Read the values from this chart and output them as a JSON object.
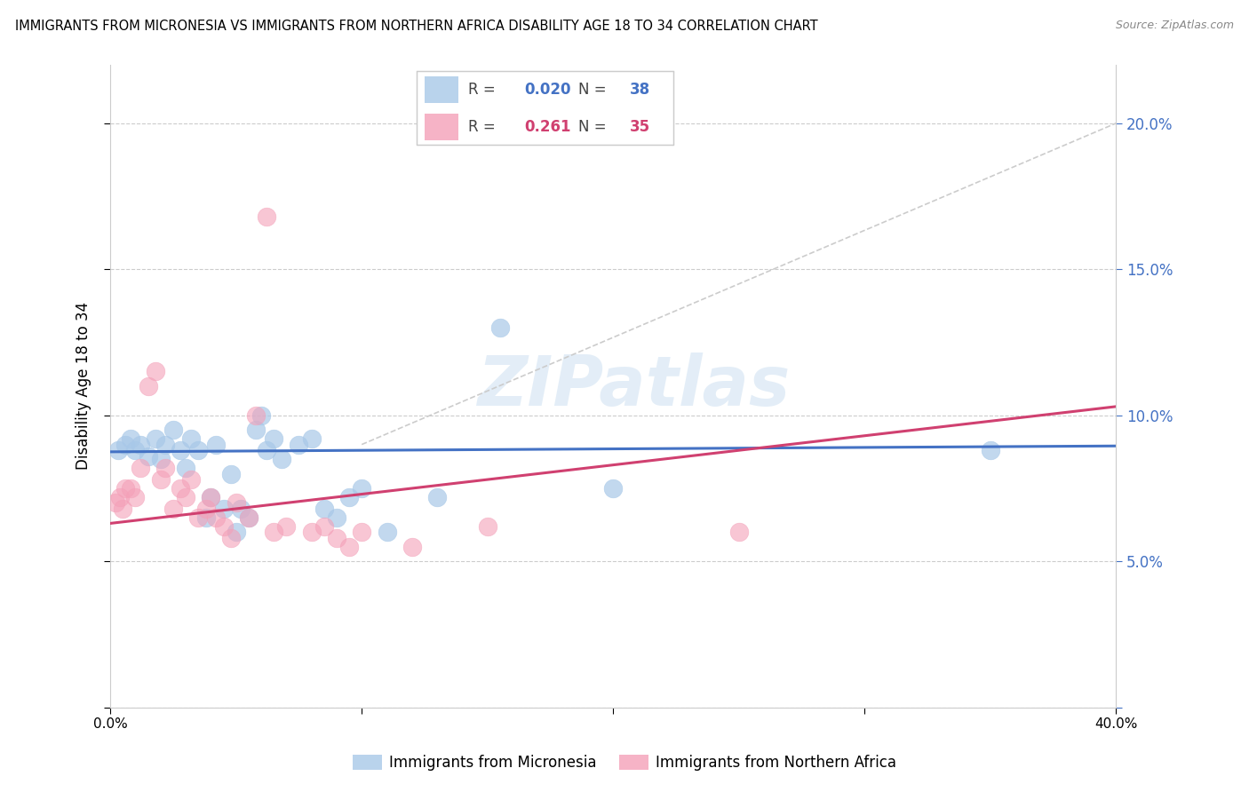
{
  "title": "IMMIGRANTS FROM MICRONESIA VS IMMIGRANTS FROM NORTHERN AFRICA DISABILITY AGE 18 TO 34 CORRELATION CHART",
  "source": "Source: ZipAtlas.com",
  "ylabel": "Disability Age 18 to 34",
  "xlim": [
    0.0,
    0.4
  ],
  "ylim": [
    0.0,
    0.22
  ],
  "yticks": [
    0.0,
    0.05,
    0.1,
    0.15,
    0.2
  ],
  "xticks": [
    0.0,
    0.1,
    0.2,
    0.3,
    0.4
  ],
  "legend_blue_r": "0.020",
  "legend_blue_n": "38",
  "legend_pink_r": "0.261",
  "legend_pink_n": "35",
  "blue_color": "#a8c8e8",
  "pink_color": "#f4a0b8",
  "blue_line_color": "#4472c4",
  "pink_line_color": "#d04070",
  "dashed_line_color": "#cccccc",
  "watermark": "ZIPatlas",
  "blue_points_x": [
    0.003,
    0.006,
    0.008,
    0.01,
    0.012,
    0.015,
    0.018,
    0.02,
    0.022,
    0.025,
    0.028,
    0.03,
    0.032,
    0.035,
    0.038,
    0.04,
    0.042,
    0.045,
    0.048,
    0.05,
    0.052,
    0.055,
    0.058,
    0.06,
    0.062,
    0.065,
    0.068,
    0.075,
    0.08,
    0.085,
    0.09,
    0.095,
    0.1,
    0.11,
    0.13,
    0.155,
    0.2,
    0.35
  ],
  "blue_points_y": [
    0.088,
    0.09,
    0.092,
    0.088,
    0.09,
    0.086,
    0.092,
    0.085,
    0.09,
    0.095,
    0.088,
    0.082,
    0.092,
    0.088,
    0.065,
    0.072,
    0.09,
    0.068,
    0.08,
    0.06,
    0.068,
    0.065,
    0.095,
    0.1,
    0.088,
    0.092,
    0.085,
    0.09,
    0.092,
    0.068,
    0.065,
    0.072,
    0.075,
    0.06,
    0.072,
    0.13,
    0.075,
    0.088
  ],
  "pink_points_x": [
    0.002,
    0.004,
    0.005,
    0.006,
    0.008,
    0.01,
    0.012,
    0.015,
    0.018,
    0.02,
    0.022,
    0.025,
    0.028,
    0.03,
    0.032,
    0.035,
    0.038,
    0.04,
    0.042,
    0.045,
    0.048,
    0.05,
    0.055,
    0.058,
    0.062,
    0.065,
    0.07,
    0.08,
    0.085,
    0.09,
    0.095,
    0.1,
    0.12,
    0.15,
    0.25
  ],
  "pink_points_y": [
    0.07,
    0.072,
    0.068,
    0.075,
    0.075,
    0.072,
    0.082,
    0.11,
    0.115,
    0.078,
    0.082,
    0.068,
    0.075,
    0.072,
    0.078,
    0.065,
    0.068,
    0.072,
    0.065,
    0.062,
    0.058,
    0.07,
    0.065,
    0.1,
    0.168,
    0.06,
    0.062,
    0.06,
    0.062,
    0.058,
    0.055,
    0.06,
    0.055,
    0.062,
    0.06
  ]
}
